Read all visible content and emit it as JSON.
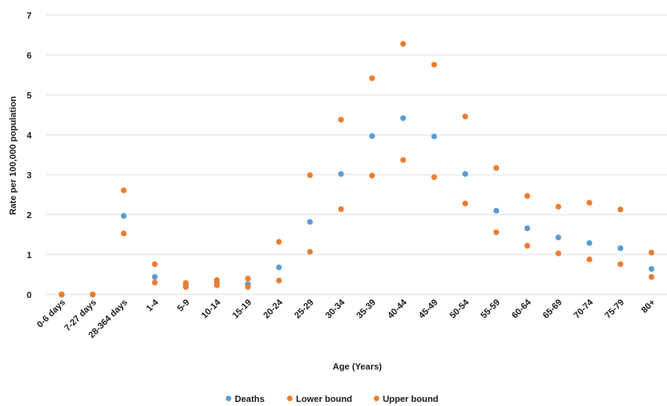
{
  "chart_data": {
    "type": "scatter",
    "categories": [
      "0-6 days",
      "7-27 days",
      "28-364 days",
      "1-4",
      "5-9",
      "10-14",
      "15-19",
      "20-24",
      "25-29",
      "30-34",
      "35-39",
      "40-44",
      "45-49",
      "50-54",
      "55-59",
      "60-64",
      "65-69",
      "70-74",
      "75-79",
      "80+"
    ],
    "series": [
      {
        "name": "Deaths",
        "color": "#5b9bd5",
        "values": [
          0,
          0,
          1.97,
          0.44,
          0.25,
          0.29,
          0.26,
          0.68,
          1.82,
          3.02,
          3.97,
          4.42,
          3.96,
          3.02,
          2.1,
          1.66,
          1.43,
          1.29,
          1.16,
          0.64
        ]
      },
      {
        "name": "Lower bound",
        "color": "#ed7d31",
        "values": [
          0,
          0,
          1.53,
          0.3,
          0.19,
          0.23,
          0.19,
          0.35,
          1.07,
          2.14,
          2.98,
          3.37,
          2.94,
          2.28,
          1.56,
          1.22,
          1.03,
          0.88,
          0.76,
          0.44
        ]
      },
      {
        "name": "Upper bound",
        "color": "#ed7d31",
        "values": [
          0,
          0,
          2.61,
          0.76,
          0.29,
          0.36,
          0.4,
          1.32,
          2.99,
          4.38,
          5.42,
          6.28,
          5.76,
          4.46,
          3.17,
          2.47,
          2.2,
          2.3,
          2.13,
          1.05
        ]
      }
    ],
    "xlabel": "Age (Years)",
    "ylabel": "Rate per 100,000 population",
    "ylim": [
      0,
      7
    ],
    "yticks": [
      "0",
      "1",
      "2",
      "3",
      "4",
      "5",
      "6",
      "7"
    ],
    "grid": true,
    "legend_position": "bottom"
  }
}
